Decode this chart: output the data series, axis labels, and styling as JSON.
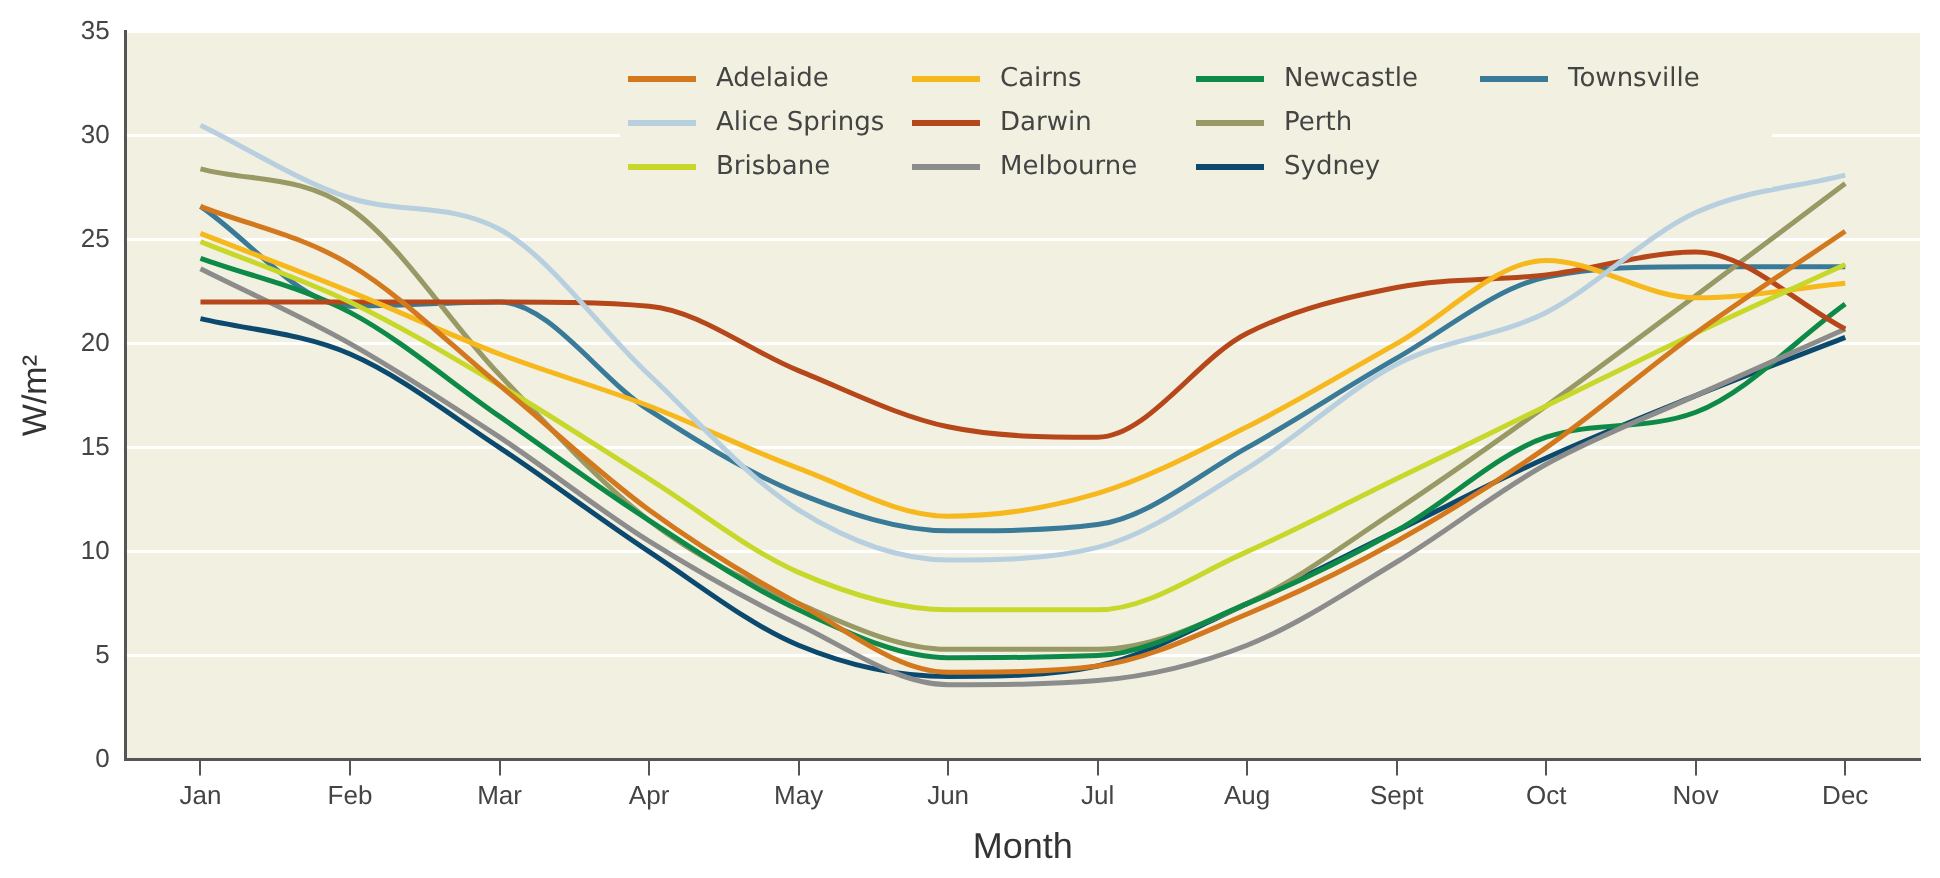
{
  "chart_data": {
    "type": "line",
    "xlabel": "Month",
    "ylabel": "W/m²",
    "categories": [
      "Jan",
      "Feb",
      "Mar",
      "Apr",
      "May",
      "Jun",
      "Jul",
      "Aug",
      "Sept",
      "Oct",
      "Nov",
      "Dec"
    ],
    "ylim": [
      0,
      35
    ],
    "yticks": [
      0,
      5,
      10,
      15,
      20,
      25,
      30,
      35
    ],
    "grid": "y",
    "legend": "top",
    "marker": "none",
    "series": [
      {
        "name": "Adelaide",
        "color": "#d4781e",
        "values": [
          26.6,
          23.8,
          18,
          12,
          7.5,
          4.2,
          4.5,
          7,
          10.5,
          15,
          20.5,
          25.4
        ]
      },
      {
        "name": "Alice Springs",
        "color": "#b8cfe0",
        "values": [
          30.5,
          27,
          25.5,
          18.5,
          12,
          9.6,
          10.2,
          14,
          19,
          21.5,
          26.3,
          28.1
        ]
      },
      {
        "name": "Brisbane",
        "color": "#c8d82a",
        "values": [
          24.9,
          22,
          18,
          13.5,
          9,
          7.2,
          7.2,
          10,
          13.5,
          17,
          20.5,
          23.8
        ]
      },
      {
        "name": "Cairns",
        "color": "#f6b81c",
        "values": [
          25.3,
          22.5,
          19.5,
          17,
          14,
          11.7,
          12.8,
          16,
          20,
          24,
          22.2,
          22.9
        ]
      },
      {
        "name": "Darwin",
        "color": "#b5471a",
        "values": [
          22,
          22,
          22,
          21.8,
          18.7,
          16,
          15.5,
          20.5,
          22.7,
          23.3,
          24.4,
          20.7
        ]
      },
      {
        "name": "Melbourne",
        "color": "#8c8c8c",
        "values": [
          23.6,
          20,
          15.5,
          10.5,
          6.5,
          3.6,
          3.8,
          5.5,
          9.5,
          14.2,
          17.5,
          20.7
        ]
      },
      {
        "name": "Newcastle",
        "color": "#0e8a48",
        "values": [
          24.1,
          21.5,
          16.5,
          11.5,
          7.2,
          4.9,
          5,
          7.5,
          11,
          15.5,
          16.7,
          21.9
        ]
      },
      {
        "name": "Perth",
        "color": "#999966",
        "values": [
          28.4,
          26.5,
          18.5,
          11.5,
          7.5,
          5.3,
          5.3,
          7.5,
          12,
          17,
          22.3,
          27.7
        ]
      },
      {
        "name": "Sydney",
        "color": "#0b4a6e",
        "values": [
          21.2,
          19.5,
          15,
          10,
          5.5,
          4,
          4.5,
          7.5,
          11,
          14.5,
          17.5,
          20.3
        ]
      },
      {
        "name": "Townsville",
        "color": "#3a7a99",
        "values": [
          26.6,
          21.8,
          22,
          16.8,
          12.8,
          11,
          11.3,
          15,
          19.3,
          23.2,
          23.7,
          23.7
        ]
      }
    ]
  }
}
